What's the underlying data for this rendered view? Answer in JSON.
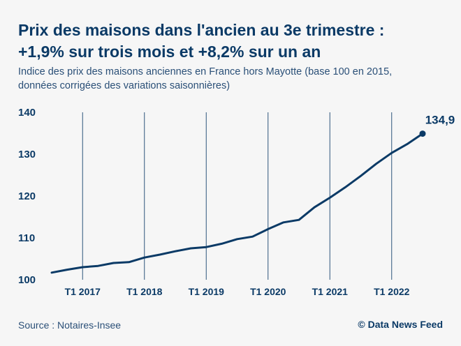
{
  "header": {
    "title_line1": "Prix des maisons dans l'ancien au 3e trimestre :",
    "title_line2": "+1,9% sur trois mois et +8,2% sur un an",
    "subtitle_line1": "Indice des prix des maisons anciennes en France hors Mayotte (base 100 en 2015,",
    "subtitle_line2": "données corrigées des variations saisonnières)"
  },
  "footer": {
    "source": "Source : Notaires-Insee",
    "credit": "© Data News Feed"
  },
  "colors": {
    "line": "#0b3a66",
    "background": "#f6f6f6",
    "gridline": "#0b3a66"
  },
  "chart_data": {
    "type": "line",
    "title": "Prix des maisons dans l'ancien au 3e trimestre : +1,9% sur trois mois et +8,2% sur un an",
    "ylim": [
      100,
      140
    ],
    "yticks": [
      100,
      110,
      120,
      130,
      140
    ],
    "xticks": [
      "T1 2017",
      "T1 2018",
      "T1 2019",
      "T1 2020",
      "T1 2021",
      "T1 2022"
    ],
    "grid": "vertical lines at each T1",
    "x": [
      "T3 2016",
      "T4 2016",
      "T1 2017",
      "T2 2017",
      "T3 2017",
      "T4 2017",
      "T1 2018",
      "T2 2018",
      "T3 2018",
      "T4 2018",
      "T1 2019",
      "T2 2019",
      "T3 2019",
      "T4 2019",
      "T1 2020",
      "T2 2020",
      "T3 2020",
      "T4 2020",
      "T1 2021",
      "T2 2021",
      "T3 2021",
      "T4 2021",
      "T1 2022",
      "T2 2022",
      "T3 2022"
    ],
    "series": [
      {
        "values": [
          101.7,
          102.4,
          103.0,
          103.3,
          104.0,
          104.2,
          105.3,
          106.0,
          106.8,
          107.5,
          107.8,
          108.6,
          109.7,
          110.3,
          112.1,
          113.7,
          114.3,
          117.3,
          119.6,
          122.1,
          124.8,
          127.7,
          130.3,
          132.4,
          134.9
        ]
      }
    ],
    "annotation": "134,9"
  }
}
